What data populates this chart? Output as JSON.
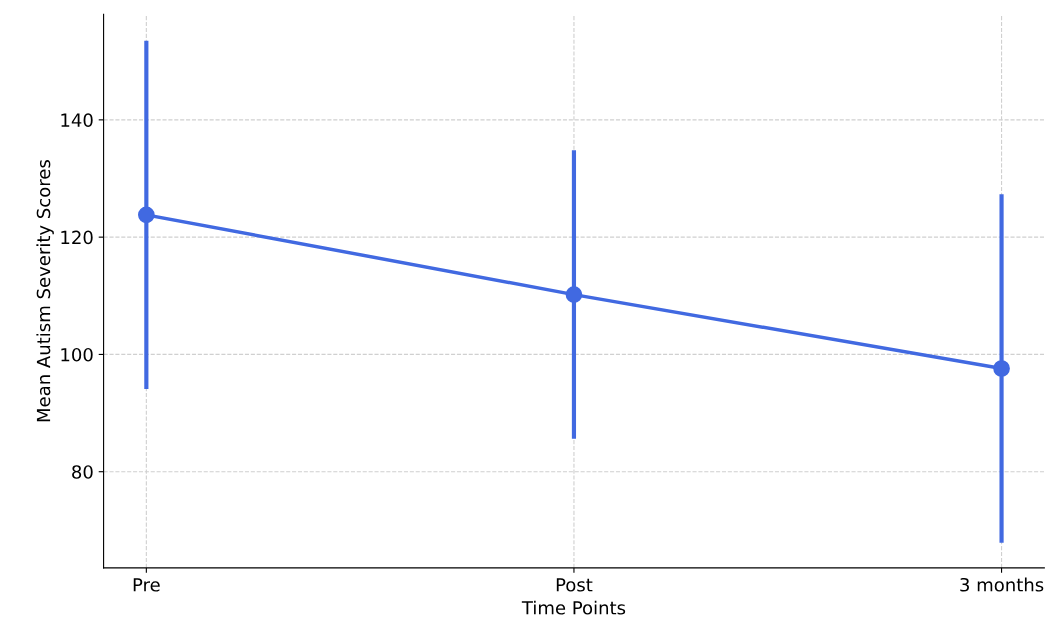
{
  "chart_data": {
    "type": "line",
    "xlabel": "Time Points",
    "ylabel": "Mean Autism Severity Scores",
    "categories": [
      "Pre",
      "Post",
      "3 months"
    ],
    "series": [
      {
        "color": "#4169e1",
        "values": [
          123.8,
          110.2,
          97.6
        ],
        "errors": [
          29.7,
          24.6,
          29.7
        ]
      }
    ],
    "ylim": [
      63.6,
      158
    ],
    "yticks": [
      80,
      100,
      120,
      140
    ],
    "grid": true,
    "marker": "circle",
    "line_style": "solid"
  }
}
